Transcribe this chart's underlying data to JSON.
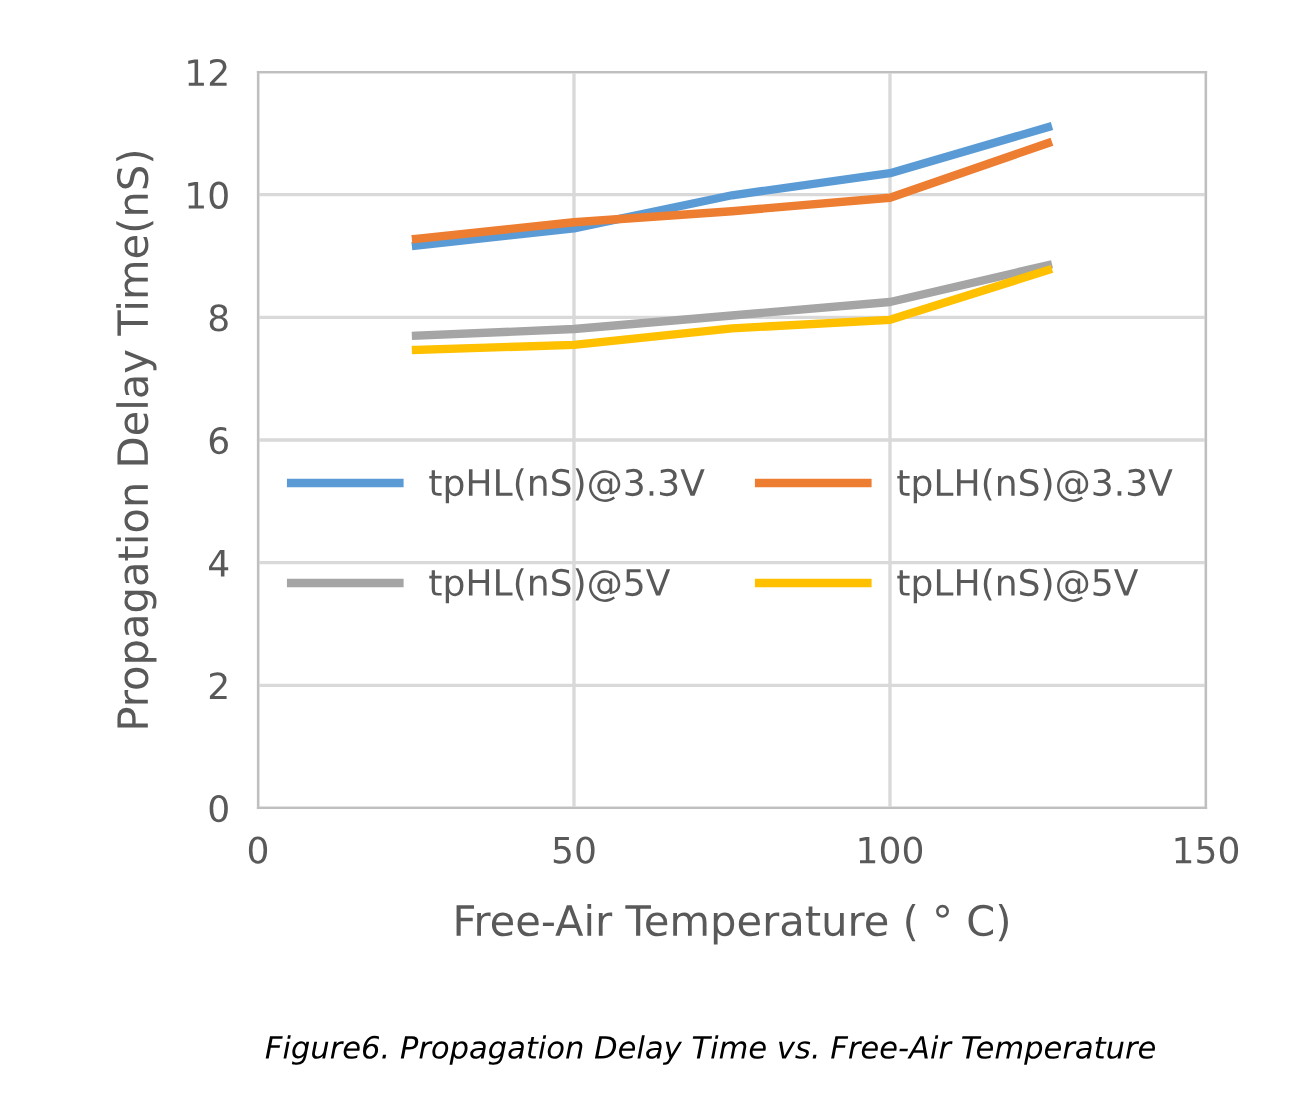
{
  "chart_data": {
    "type": "line",
    "xlabel": "Free-Air Temperature ( ° C)",
    "ylabel": "Propagation Delay Time(nS)",
    "x": [
      25,
      50,
      75,
      100,
      125
    ],
    "series": [
      {
        "name": "tpHL(nS)@3.3V",
        "color": "#5b9bd5",
        "values": [
          9.17,
          9.45,
          9.99,
          10.35,
          11.1
        ]
      },
      {
        "name": "tpLH(nS)@3.3V",
        "color": "#ed7d31",
        "values": [
          9.28,
          9.55,
          9.73,
          9.95,
          10.84
        ]
      },
      {
        "name": "tpHL(nS)@5V",
        "color": "#a5a5a5",
        "values": [
          7.7,
          7.81,
          8.03,
          8.25,
          8.85
        ]
      },
      {
        "name": "tpLH(nS)@5V",
        "color": "#ffc000",
        "values": [
          7.47,
          7.55,
          7.82,
          7.96,
          8.77
        ]
      }
    ],
    "xlim": [
      0,
      150
    ],
    "xticks": [
      0,
      50,
      100,
      150
    ],
    "ylim": [
      0,
      12
    ],
    "yticks": [
      0,
      2,
      4,
      6,
      8,
      10,
      12
    ],
    "grid": true,
    "legend": "center",
    "marker": "none",
    "line_style": "solid",
    "annotations": [
      "Figure6. Propagation Delay Time vs. Free-Air Temperature"
    ]
  }
}
